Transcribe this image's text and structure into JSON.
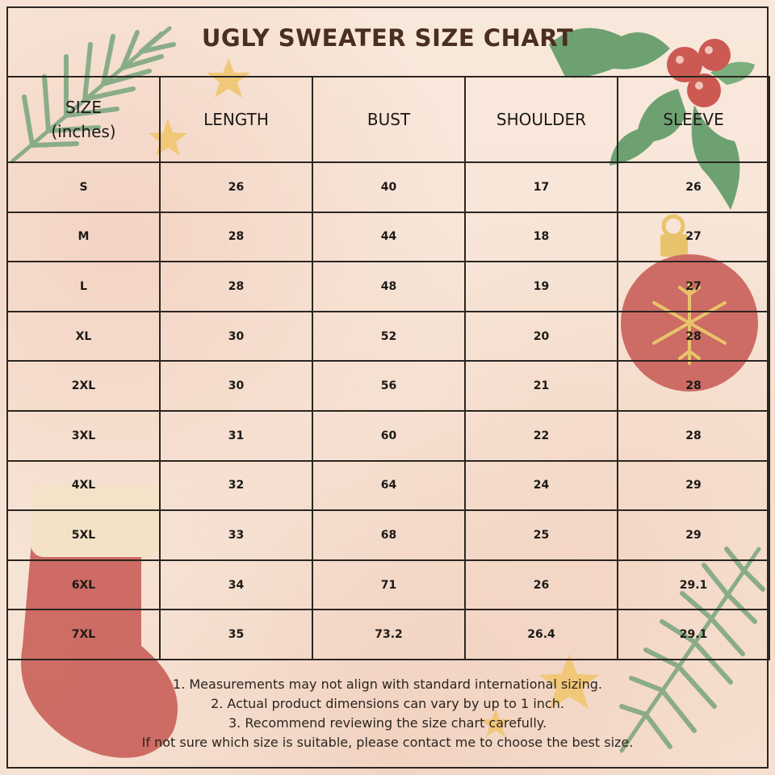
{
  "title": "UGLY SWEATER SIZE CHART",
  "headers": {
    "size_line1": "SIZE",
    "size_line2": "(inches)",
    "length": "LENGTH",
    "bust": "BUST",
    "shoulder": "SHOULDER",
    "sleeve": "SLEEVE"
  },
  "rows": [
    {
      "size": "S",
      "length": "26",
      "bust": "40",
      "shoulder": "17",
      "sleeve": "26"
    },
    {
      "size": "M",
      "length": "28",
      "bust": "44",
      "shoulder": "18",
      "sleeve": "27"
    },
    {
      "size": "L",
      "length": "28",
      "bust": "48",
      "shoulder": "19",
      "sleeve": "27"
    },
    {
      "size": "XL",
      "length": "30",
      "bust": "52",
      "shoulder": "20",
      "sleeve": "28"
    },
    {
      "size": "2XL",
      "length": "30",
      "bust": "56",
      "shoulder": "21",
      "sleeve": "28"
    },
    {
      "size": "3XL",
      "length": "31",
      "bust": "60",
      "shoulder": "22",
      "sleeve": "28"
    },
    {
      "size": "4XL",
      "length": "32",
      "bust": "64",
      "shoulder": "24",
      "sleeve": "29"
    },
    {
      "size": "5XL",
      "length": "33",
      "bust": "68",
      "shoulder": "25",
      "sleeve": "29"
    },
    {
      "size": "6XL",
      "length": "34",
      "bust": "71",
      "shoulder": "26",
      "sleeve": "29.1"
    },
    {
      "size": "7XL",
      "length": "35",
      "bust": "73.2",
      "shoulder": "26.4",
      "sleeve": "29.1"
    }
  ],
  "notes": [
    "1. Measurements may not align with standard international sizing.",
    "2. Actual product dimensions can vary by up to 1 inch.",
    "3. Recommend reviewing the size chart carefully.",
    "If not sure which size is suitable, please contact me to choose the best size."
  ],
  "decorations": {
    "icons": [
      "pine-branch-icon",
      "star-icon",
      "holly-icon",
      "ornament-icon",
      "stocking-icon"
    ],
    "colors": {
      "pine": "#7fa882",
      "star": "#f0c46a",
      "holly_leaf": "#5f9a66",
      "berry": "#c94a45",
      "ornament": "#c9605a",
      "stocking": "#c95f58",
      "gold": "#e8c060"
    }
  }
}
